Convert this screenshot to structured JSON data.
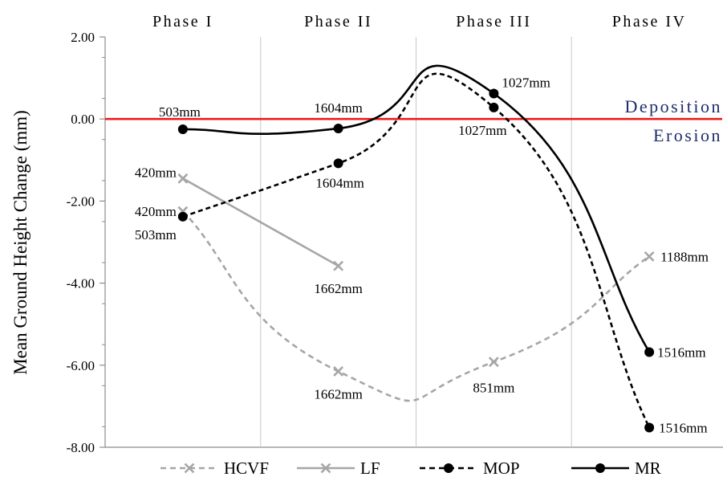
{
  "chart_data": {
    "type": "line",
    "ylabel": "Mean Ground Height Change (mm)",
    "ylim": [
      -8,
      2
    ],
    "yticks": [
      2,
      0,
      -2,
      -4,
      -6,
      -8
    ],
    "ytick_labels": [
      "2.00",
      "0.00",
      "-2.00",
      "-4.00",
      "-6.00",
      "-8.00"
    ],
    "categories": [
      "Phase I",
      "Phase II",
      "Phase III",
      "Phase IV"
    ],
    "grid": "vertical-separators",
    "reference_line": {
      "y": 0,
      "color": "#ee1c1c"
    },
    "region_labels": {
      "above": "Deposition",
      "below": "Erosion",
      "color": "#1f2d6b"
    },
    "legend_position": "bottom",
    "series": [
      {
        "name": "HCVF",
        "color": "#a6a6a6",
        "line_style": "dashed",
        "marker": "x",
        "smooth": true,
        "values": [
          -2.25,
          -6.15,
          -5.92,
          -3.35
        ],
        "labels": [
          "420mm",
          "1662mm",
          "851mm",
          "1188mm"
        ]
      },
      {
        "name": "LF",
        "color": "#a6a6a6",
        "line_style": "solid",
        "marker": "x",
        "smooth": false,
        "values": [
          -1.45,
          -3.58,
          null,
          null
        ],
        "labels": [
          "420mm",
          "1662mm",
          null,
          null
        ]
      },
      {
        "name": "MOP",
        "color": "#000000",
        "line_style": "dashed",
        "marker": "circle",
        "smooth": true,
        "values": [
          -2.38,
          -1.08,
          0.28,
          -7.52
        ],
        "labels": [
          "503mm",
          "1604mm",
          "1027mm",
          "1516mm"
        ]
      },
      {
        "name": "MR",
        "color": "#000000",
        "line_style": "solid",
        "marker": "circle",
        "smooth": true,
        "values": [
          -0.25,
          -0.23,
          0.62,
          -5.68
        ],
        "labels": [
          "503mm",
          "1604mm",
          "1027mm",
          "1516mm"
        ]
      }
    ]
  }
}
